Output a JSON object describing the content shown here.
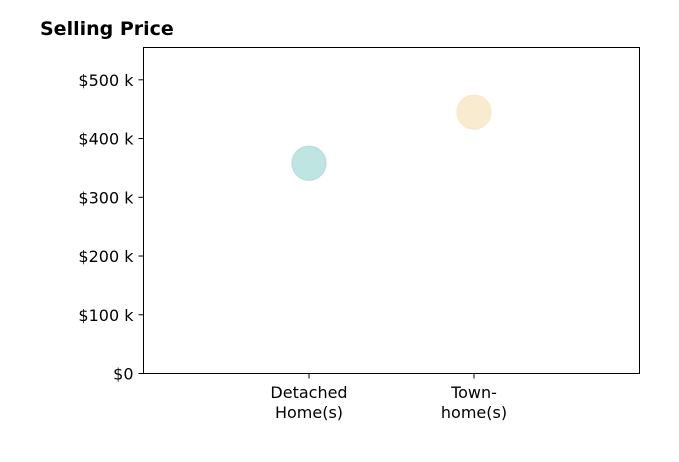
{
  "chart_data": {
    "type": "scatter",
    "title": "Selling Price",
    "xlabel": "",
    "ylabel": "",
    "categories": [
      "Detached Home(s)",
      "Town-home(s)"
    ],
    "category_label_lines": [
      [
        "Detached",
        "Home(s)"
      ],
      [
        "Town-",
        "home(s)"
      ]
    ],
    "points": [
      {
        "category": "Detached Home(s)",
        "value": 358000,
        "color": "#b3e0dc"
      },
      {
        "category": "Town-home(s)",
        "value": 445000,
        "color": "#f8e8c8"
      }
    ],
    "ylim": [
      0,
      555000
    ],
    "yticks": [
      0,
      100000,
      200000,
      300000,
      400000,
      500000
    ],
    "ytick_labels": [
      "$0",
      "$100 k",
      "$200 k",
      "$300 k",
      "$400 k",
      "$500 k"
    ],
    "grid": false,
    "legend": "none"
  }
}
